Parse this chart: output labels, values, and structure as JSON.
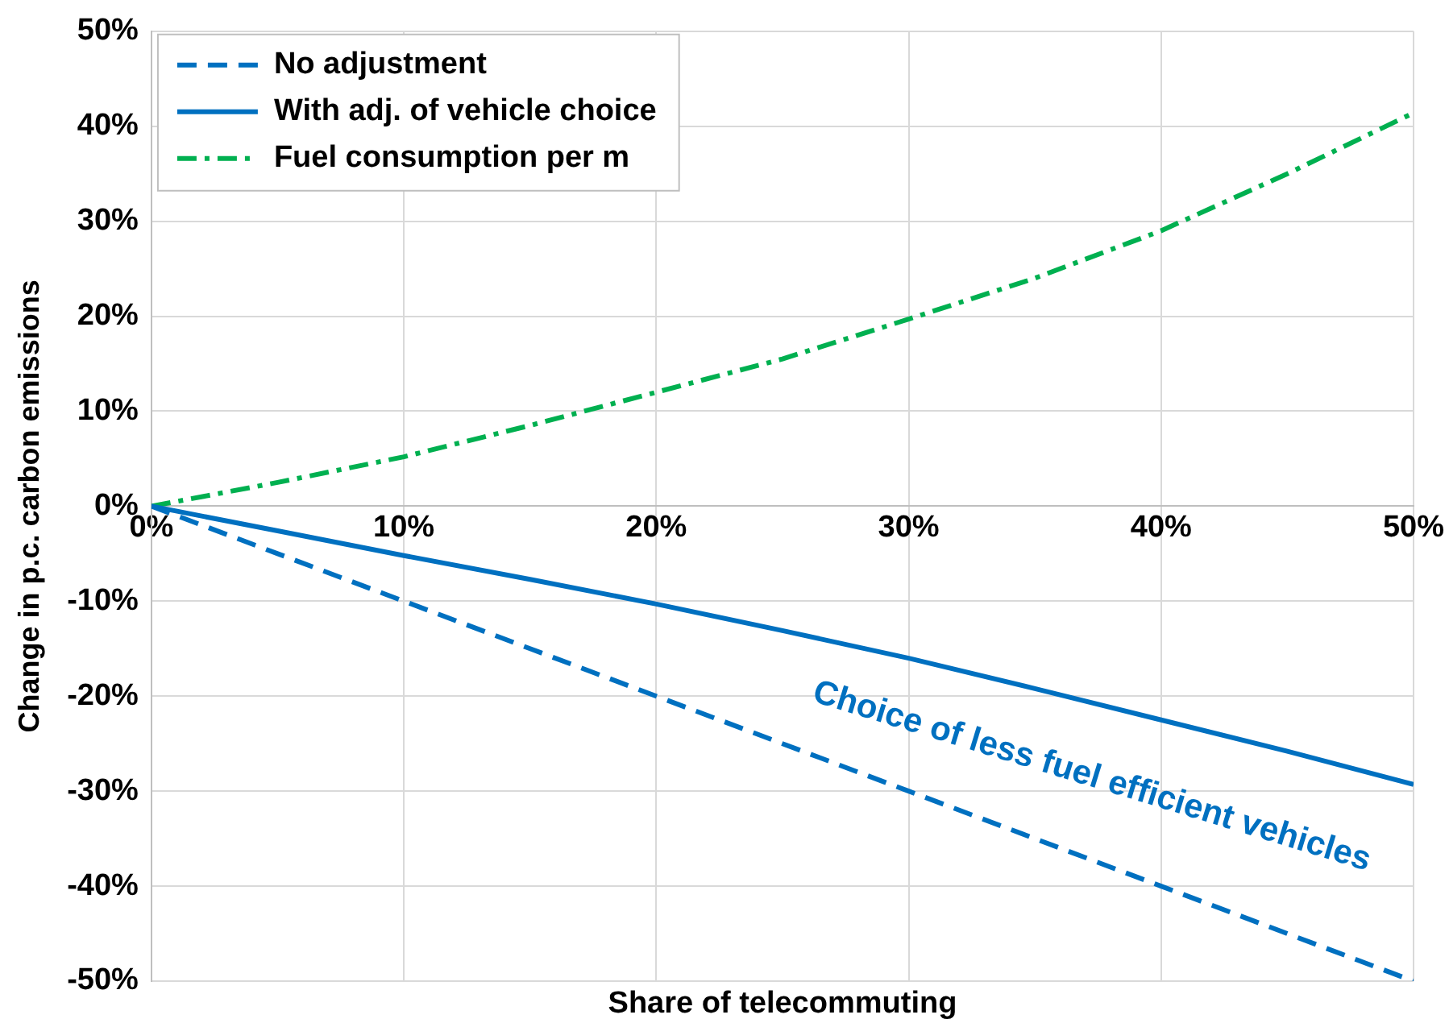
{
  "chart_data": {
    "type": "line",
    "xlabel": "Share of telecommuting",
    "ylabel": "Change in p.c. carbon emissions",
    "x": [
      0,
      5,
      10,
      15,
      20,
      25,
      30,
      35,
      40,
      45,
      50
    ],
    "series": [
      {
        "name": "No adjustment",
        "color": "#0070c0",
        "line_style": "dashed",
        "values": [
          0,
          -5,
          -10,
          -15,
          -20,
          -25,
          -30,
          -35,
          -40,
          -45,
          -50
        ]
      },
      {
        "name": "With adj. of vehicle choice",
        "color": "#0070c0",
        "line_style": "solid",
        "values": [
          0,
          -2.6,
          -5.2,
          -7.7,
          -10.3,
          -13.1,
          -16,
          -19.2,
          -22.5,
          -25.8,
          -29.3
        ]
      },
      {
        "name": "Fuel consumption per m",
        "color": "#00b050",
        "line_style": "dashdot",
        "values": [
          0,
          2.5,
          5.2,
          8.5,
          12,
          15.5,
          19.7,
          24,
          29,
          35,
          41.4
        ]
      }
    ],
    "xlim": [
      0,
      50
    ],
    "xticks": [
      {
        "value": 0,
        "label": "0%"
      },
      {
        "value": 10,
        "label": "10%"
      },
      {
        "value": 20,
        "label": "20%"
      },
      {
        "value": 30,
        "label": "30%"
      },
      {
        "value": 40,
        "label": "40%"
      },
      {
        "value": 50,
        "label": "50%"
      }
    ],
    "ylim": [
      -50,
      50
    ],
    "yticks": [
      {
        "value": -50,
        "label": "-50%"
      },
      {
        "value": -40,
        "label": "-40%"
      },
      {
        "value": -30,
        "label": "-30%"
      },
      {
        "value": -20,
        "label": "-20%"
      },
      {
        "value": -10,
        "label": "-10%"
      },
      {
        "value": 0,
        "label": "0%"
      },
      {
        "value": 10,
        "label": "10%"
      },
      {
        "value": 20,
        "label": "20%"
      },
      {
        "value": 30,
        "label": "30%"
      },
      {
        "value": 40,
        "label": "40%"
      },
      {
        "value": 50,
        "label": "50%"
      }
    ],
    "annotations": [
      "Choice of less fuel efficient vehicles"
    ],
    "grid": true,
    "legend": "top left",
    "marker": "none"
  }
}
